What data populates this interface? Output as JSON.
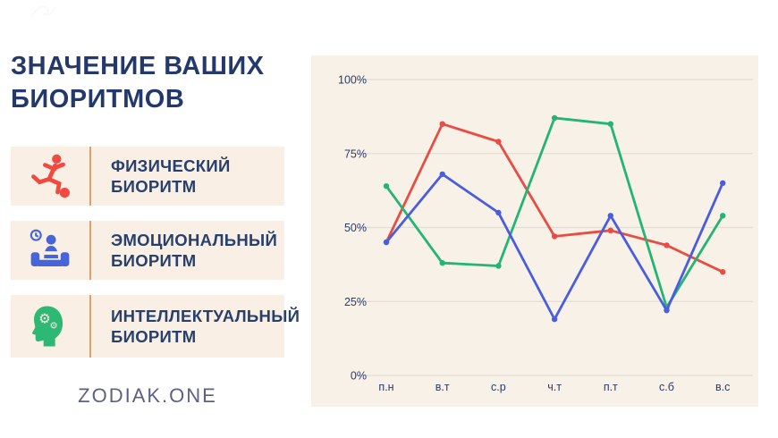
{
  "page": {
    "title_line1": "ЗНАЧЕНИЕ ВАШИХ",
    "title_line2": "БИОРИТМОВ",
    "brand": "ZODIAK.ONE",
    "accent_navy": "#24396b",
    "card_background": "#f9efe4",
    "divider_color": "#dd9f6b"
  },
  "legend": {
    "items": [
      {
        "icon": "running-man-icon",
        "color": "#f04a41",
        "label_line1": "ФИЗИЧЕСКИЙ",
        "label_line2": "БИОРИТМ"
      },
      {
        "icon": "person-resting-icon",
        "color": "#4565d8",
        "label_line1": "ЭМОЦИОНАЛЬНЫЙ",
        "label_line2": "БИОРИТМ"
      },
      {
        "icon": "head-gears-icon",
        "color": "#2db873",
        "label_line1": "ИНТЕЛЛЕКТУАЛЬНЫЙ",
        "label_line2": "БИОРИТМ"
      }
    ]
  },
  "chart_data": {
    "type": "line",
    "categories": [
      "п.н",
      "в.т",
      "с.р",
      "ч.т",
      "п.т",
      "с.б",
      "в.с"
    ],
    "series": [
      {
        "name": "Физический биоритм",
        "color": "#e84c43",
        "values": [
          45,
          85,
          79,
          47,
          49,
          44,
          35
        ]
      },
      {
        "name": "Эмоциональный биоритм",
        "color": "#4a5ce0",
        "values": [
          45,
          68,
          55,
          19,
          54,
          22,
          65
        ]
      },
      {
        "name": "Интеллектуальный биоритм",
        "color": "#22b573",
        "values": [
          64,
          38,
          37,
          87,
          85,
          23,
          54
        ]
      }
    ],
    "ylim": [
      0,
      100
    ],
    "yticks": [
      "0%",
      "25%",
      "50%",
      "75%",
      "100%"
    ],
    "grid": true,
    "legend_position": "left-panel",
    "background": "#f8f1e8",
    "gridline_color": "#e2ded5",
    "draw_order": [
      0,
      2,
      1
    ]
  }
}
